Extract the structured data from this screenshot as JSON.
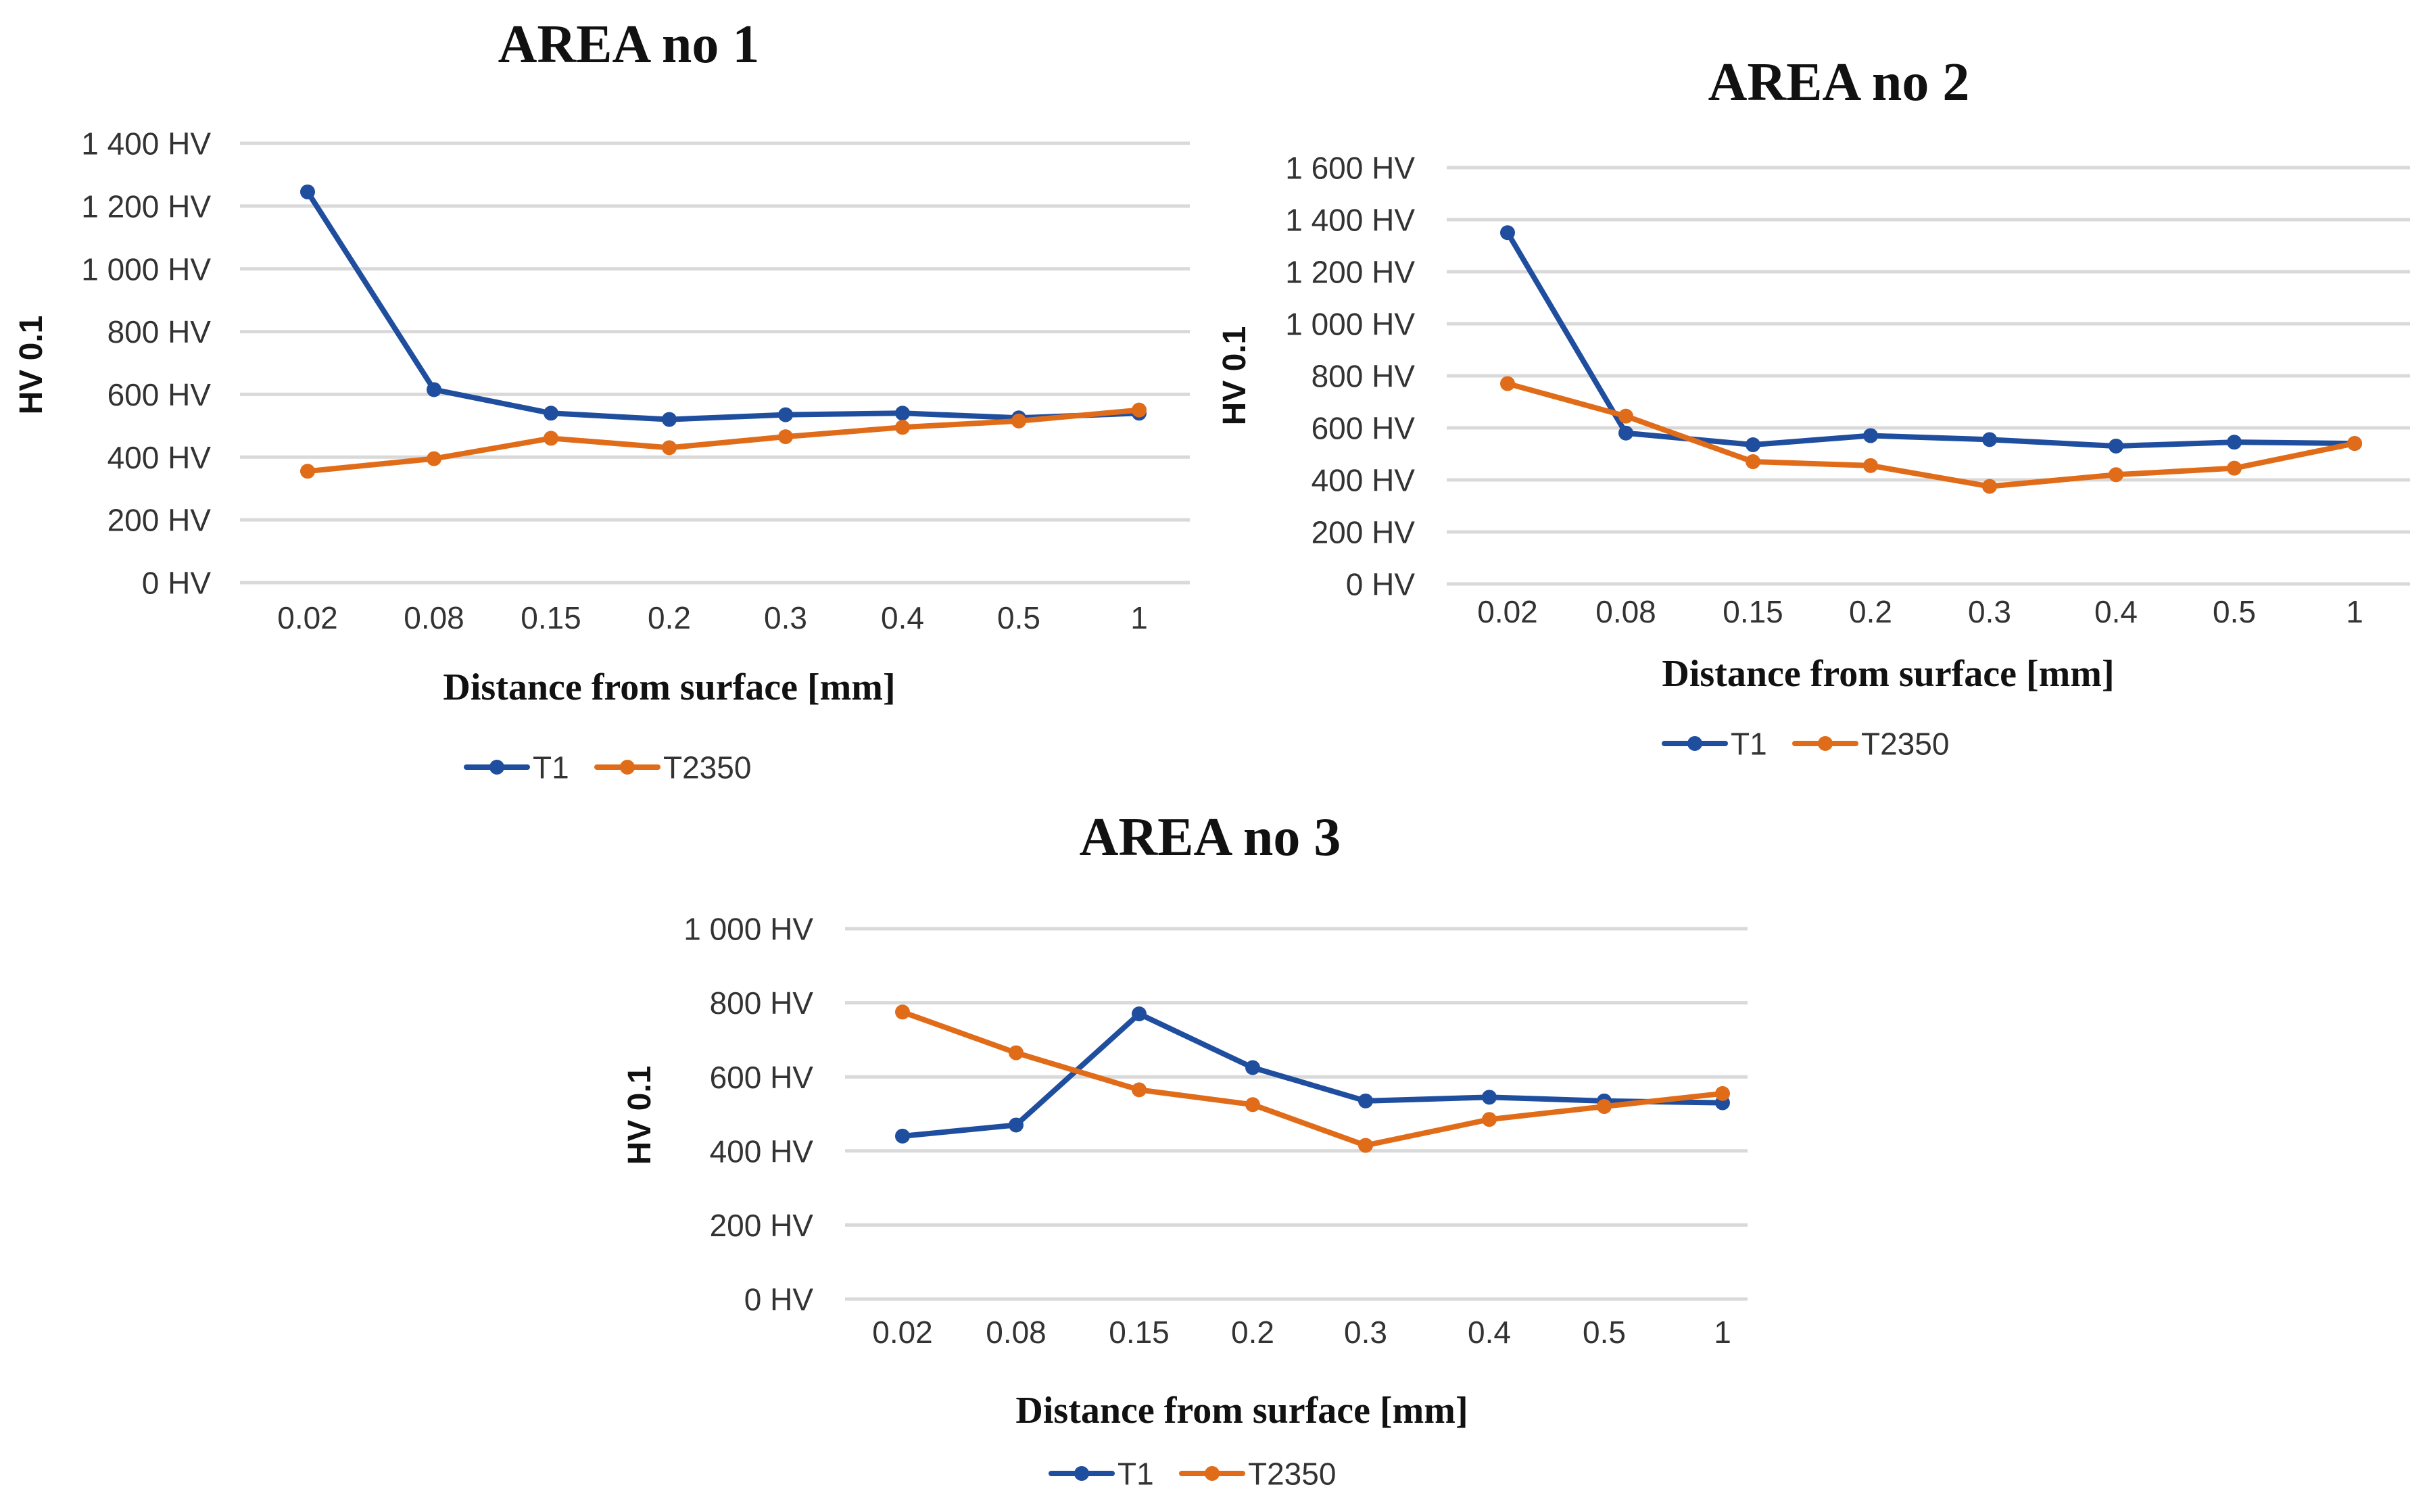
{
  "chart_data": [
    {
      "type": "line",
      "title": "AREA no 1",
      "xlabel": "Distance from surface [mm]",
      "ylabel": "HV 0.1",
      "categories": [
        "0.02",
        "0.08",
        "0.15",
        "0.2",
        "0.3",
        "0.4",
        "0.5",
        "1"
      ],
      "ylim": [
        0,
        1400
      ],
      "yticks": [
        0,
        200,
        400,
        600,
        800,
        1000,
        1200,
        1400
      ],
      "ytick_labels": [
        "0 HV",
        "200 HV",
        "400 HV",
        "600 HV",
        "800 HV",
        "1 000 HV",
        "1 200 HV",
        "1 400 HV"
      ],
      "grid": true,
      "legend": "bottom",
      "series": [
        {
          "name": "T1",
          "color": "#1f4e9e",
          "values": [
            1245,
            615,
            540,
            520,
            535,
            540,
            525,
            540
          ]
        },
        {
          "name": "T2350",
          "color": "#e06c1a",
          "values": [
            355,
            395,
            460,
            430,
            465,
            495,
            515,
            550
          ]
        }
      ]
    },
    {
      "type": "line",
      "title": "AREA no 2",
      "xlabel": "Distance from surface [mm]",
      "ylabel": "HV 0.1",
      "categories": [
        "0.02",
        "0.08",
        "0.15",
        "0.2",
        "0.3",
        "0.4",
        "0.5",
        "1"
      ],
      "ylim": [
        0,
        1600
      ],
      "yticks": [
        0,
        200,
        400,
        600,
        800,
        1000,
        1200,
        1400,
        1600
      ],
      "ytick_labels": [
        "0 HV",
        "200 HV",
        "400 HV",
        "600 HV",
        "800 HV",
        "1 000 HV",
        "1 200 HV",
        "1 400 HV",
        "1 600 HV"
      ],
      "grid": true,
      "legend": "bottom",
      "series": [
        {
          "name": "T1",
          "color": "#1f4e9e",
          "values": [
            1350,
            580,
            535,
            570,
            555,
            530,
            545,
            540
          ]
        },
        {
          "name": "T2350",
          "color": "#e06c1a",
          "values": [
            770,
            645,
            470,
            455,
            375,
            420,
            445,
            540
          ]
        }
      ]
    },
    {
      "type": "line",
      "title": "AREA no 3",
      "xlabel": "Distance from surface [mm]",
      "ylabel": "HV 0.1",
      "categories": [
        "0.02",
        "0.08",
        "0.15",
        "0.2",
        "0.3",
        "0.4",
        "0.5",
        "1"
      ],
      "ylim": [
        0,
        1000
      ],
      "yticks": [
        0,
        200,
        400,
        600,
        800,
        1000
      ],
      "ytick_labels": [
        "0 HV",
        "200 HV",
        "400 HV",
        "600 HV",
        "800 HV",
        "1 000 HV"
      ],
      "grid": true,
      "legend": "bottom",
      "series": [
        {
          "name": "T1",
          "color": "#1f4e9e",
          "values": [
            440,
            470,
            770,
            625,
            535,
            545,
            535,
            530
          ]
        },
        {
          "name": "T2350",
          "color": "#e06c1a",
          "values": [
            775,
            665,
            565,
            525,
            415,
            485,
            520,
            555
          ]
        }
      ]
    }
  ]
}
